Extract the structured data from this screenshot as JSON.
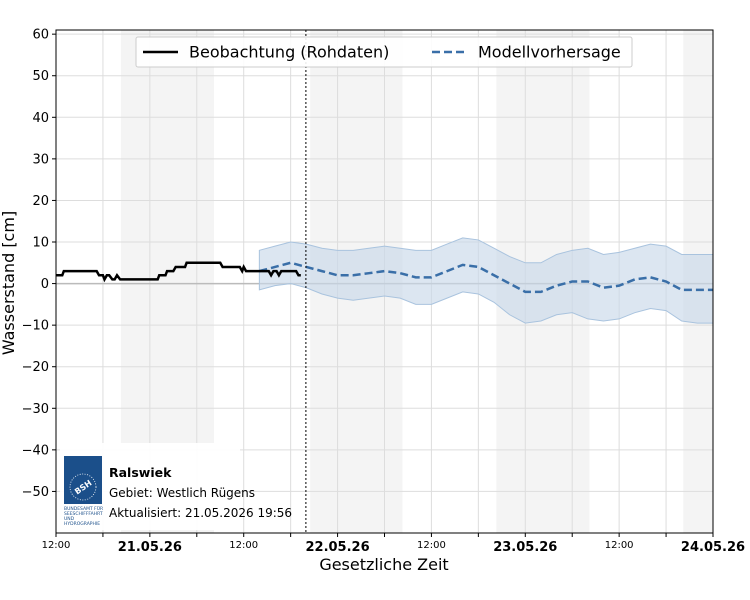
{
  "chart_data": {
    "type": "line",
    "xlabel": "Gesetzliche Zeit",
    "ylabel": "Wasserstand [cm]",
    "ylim": [
      -60,
      61
    ],
    "yticks": [
      -50,
      -40,
      -30,
      -20,
      -10,
      0,
      10,
      20,
      30,
      40,
      50,
      60
    ],
    "ytick_labels": [
      "−50",
      "−40",
      "−30",
      "−20",
      "−10",
      "0",
      "10",
      "20",
      "30",
      "40",
      "50",
      "60"
    ],
    "xlim_hours": [
      12,
      84
    ],
    "x_ticks": [
      {
        "hour": 12,
        "label": "12:00",
        "kind": "time"
      },
      {
        "hour": 24,
        "label": "21.05.26",
        "kind": "date"
      },
      {
        "hour": 36,
        "label": "12:00",
        "kind": "time"
      },
      {
        "hour": 48,
        "label": "22.05.26",
        "kind": "date"
      },
      {
        "hour": 60,
        "label": "12:00",
        "kind": "time"
      },
      {
        "hour": 72,
        "label": "23.05.26",
        "kind": "date"
      },
      {
        "hour": 84,
        "label": "12:00",
        "kind": "time"
      },
      {
        "hour": 96,
        "label": "24.05.26",
        "kind": "date"
      }
    ],
    "x_axis_span_hours": [
      12,
      96
    ],
    "now_hour": 43.95,
    "night_shading": [
      [
        20.3,
        32.2
      ],
      [
        44.5,
        56.3
      ],
      [
        68.3,
        80.2
      ],
      [
        92.2,
        96
      ]
    ],
    "grid": true,
    "legend": {
      "placement": "top-center",
      "entries": [
        "Beobachtung (Rohdaten)",
        "Modellvorhersage"
      ]
    },
    "series": [
      {
        "name": "Beobachtung (Rohdaten)",
        "style": "solid",
        "color": "#000000",
        "x": [
          12,
          12.8,
          13,
          17.2,
          17.5,
          18,
          18.2,
          18.5,
          18.8,
          19.2,
          19.5,
          19.8,
          20.2,
          20.5,
          25,
          25.2,
          26,
          26.2,
          27,
          27.3,
          28.5,
          28.7,
          33,
          33.3,
          35.5,
          35.8,
          36,
          36.3,
          37,
          37.2,
          39.2,
          39.5,
          39.8,
          40.2,
          40.5,
          40.8,
          42.7,
          43,
          43.3
        ],
        "y": [
          2,
          2,
          3,
          3,
          2,
          2,
          1,
          2,
          2,
          1,
          1,
          2,
          1,
          1,
          1,
          2,
          2,
          3,
          3,
          4,
          4,
          5,
          5,
          4,
          4,
          3,
          4,
          3,
          3,
          3,
          3,
          2,
          3,
          3,
          2,
          3,
          3,
          2,
          2
        ]
      },
      {
        "name": "Modellvorhersage",
        "style": "dashed",
        "color": "#3a6fa8",
        "x": [
          38,
          40,
          42,
          44,
          46,
          48,
          50,
          52,
          54,
          56,
          58,
          60,
          62,
          64,
          66,
          68,
          70,
          72,
          74,
          76,
          78,
          80,
          82,
          84,
          86,
          88,
          90,
          92,
          94,
          96
        ],
        "y": [
          3,
          4,
          5,
          4,
          3,
          2,
          2,
          2.5,
          3,
          2.5,
          1.5,
          1.5,
          3,
          4.5,
          4,
          2,
          0,
          -2,
          -2,
          -0.5,
          0.5,
          0.5,
          -1,
          -0.5,
          1,
          1.5,
          0.5,
          -1.5,
          -1.5,
          -1.5
        ],
        "upper": [
          8,
          9,
          10,
          9.5,
          8.5,
          8,
          8,
          8.5,
          9,
          8.5,
          8,
          8,
          9.5,
          11,
          10.5,
          8.5,
          6.5,
          5,
          5,
          7,
          8,
          8.5,
          7,
          7.5,
          8.5,
          9.5,
          9,
          7,
          7,
          7
        ],
        "lower": [
          -1.5,
          -0.5,
          0,
          -1,
          -2.5,
          -3.5,
          -4,
          -3.5,
          -3,
          -3.5,
          -5,
          -5,
          -3.5,
          -2,
          -2.5,
          -4.5,
          -7.5,
          -9.5,
          -9,
          -7.5,
          -7,
          -8.5,
          -9,
          -8.5,
          -7,
          -6,
          -6.5,
          -9,
          -9.5,
          -9.5
        ]
      }
    ]
  },
  "info_box": {
    "station": "Ralswiek",
    "region": "Gebiet: Westlich Rügens",
    "updated": "Aktualisiert: 21.05.2026 19:56",
    "logo_abbr": "BSH",
    "logo_lines": [
      "BUNDESAMT FÜR",
      "SEESCHIFFFAHRT",
      "UND",
      "HYDROGRAPHIE"
    ]
  },
  "colors": {
    "observation": "#000000",
    "forecast": "#3a6fa8",
    "band": "#c9d9ea",
    "night": "#efefef",
    "grid": "#dddddd",
    "logo": "#1b4f8a"
  }
}
